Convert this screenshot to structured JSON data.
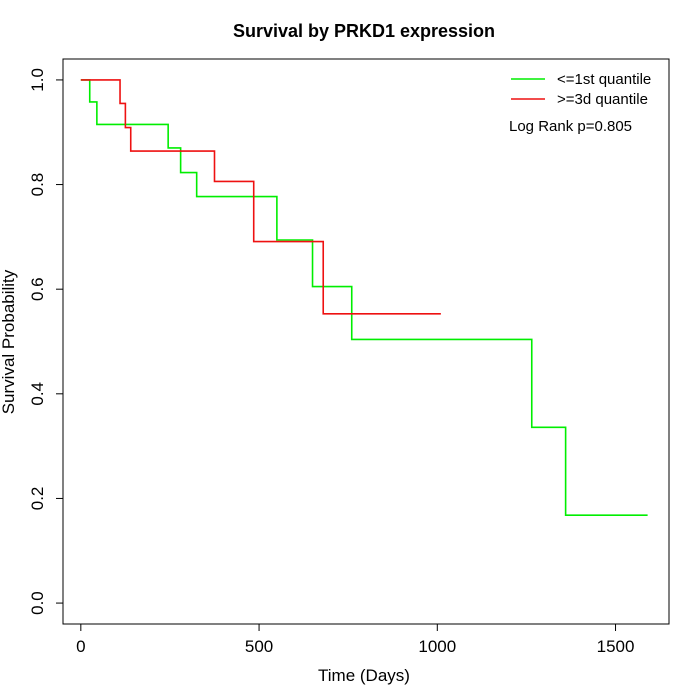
{
  "chart_data": {
    "type": "line",
    "step": true,
    "title": "Survival by PRKD1 expression",
    "xlabel": "Time (Days)",
    "ylabel": "Survival Probability",
    "xlim": [
      -50,
      1650
    ],
    "ylim": [
      -0.04,
      1.04
    ],
    "x_ticks": [
      0,
      500,
      1000,
      1500
    ],
    "x_tick_labels": [
      "0",
      "500",
      "1000",
      "1500"
    ],
    "y_ticks": [
      0.0,
      0.2,
      0.4,
      0.6,
      0.8,
      1.0
    ],
    "y_tick_labels": [
      "0.0",
      "0.2",
      "0.4",
      "0.6",
      "0.8",
      "1.0"
    ],
    "grid": false,
    "legend_position": "top-right",
    "annotation": "Log Rank p=0.805",
    "series": [
      {
        "name": "<=1st quantile",
        "color": "#00ee00",
        "x": [
          0,
          25,
          45,
          245,
          280,
          325,
          550,
          650,
          760,
          1265,
          1360,
          1590
        ],
        "y": [
          1.0,
          0.958,
          0.915,
          0.87,
          0.823,
          0.777,
          0.694,
          0.605,
          0.504,
          0.336,
          0.168,
          0.168
        ]
      },
      {
        "name": ">=3d quantile",
        "color": "#ee1111",
        "x": [
          0,
          110,
          125,
          140,
          375,
          485,
          680,
          1010
        ],
        "y": [
          1.0,
          0.955,
          0.909,
          0.864,
          0.806,
          0.691,
          0.553,
          0.553
        ]
      }
    ]
  }
}
